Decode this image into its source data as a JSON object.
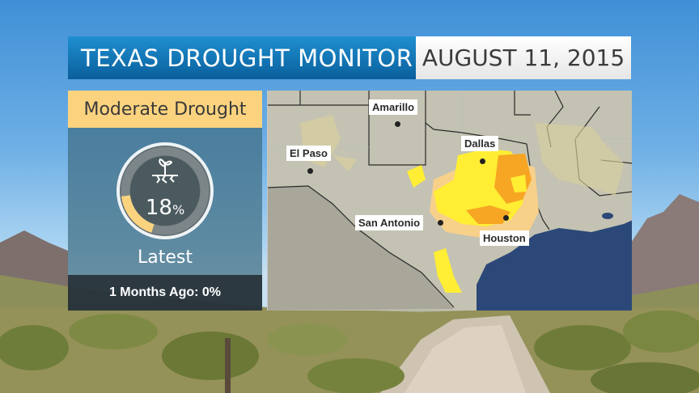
{
  "header": {
    "title": "TEXAS DROUGHT MONITOR",
    "date": "AUGUST 11, 2015"
  },
  "panel": {
    "category": "Moderate Drought",
    "percent_value": "18",
    "percent_unit": "%",
    "percent_fraction": 0.18,
    "current_label": "Latest",
    "comparison": "1 Months Ago: 0%"
  },
  "map": {
    "cities": [
      {
        "name": "Amarillo"
      },
      {
        "name": "El Paso"
      },
      {
        "name": "Dallas"
      },
      {
        "name": "San Antonio"
      },
      {
        "name": "Houston"
      }
    ]
  },
  "colors": {
    "title_blue": "#0a5f9c",
    "category_yellow": "#fbd37f",
    "gauge_fill": "#fbd37f",
    "drought_yellow": "#ffee33",
    "drought_orange": "#f6a623",
    "abnormally_dry": "#f7d08a",
    "gulf_water": "#2b4878"
  },
  "icons": {
    "gauge_icon": "drought-plant-icon"
  }
}
